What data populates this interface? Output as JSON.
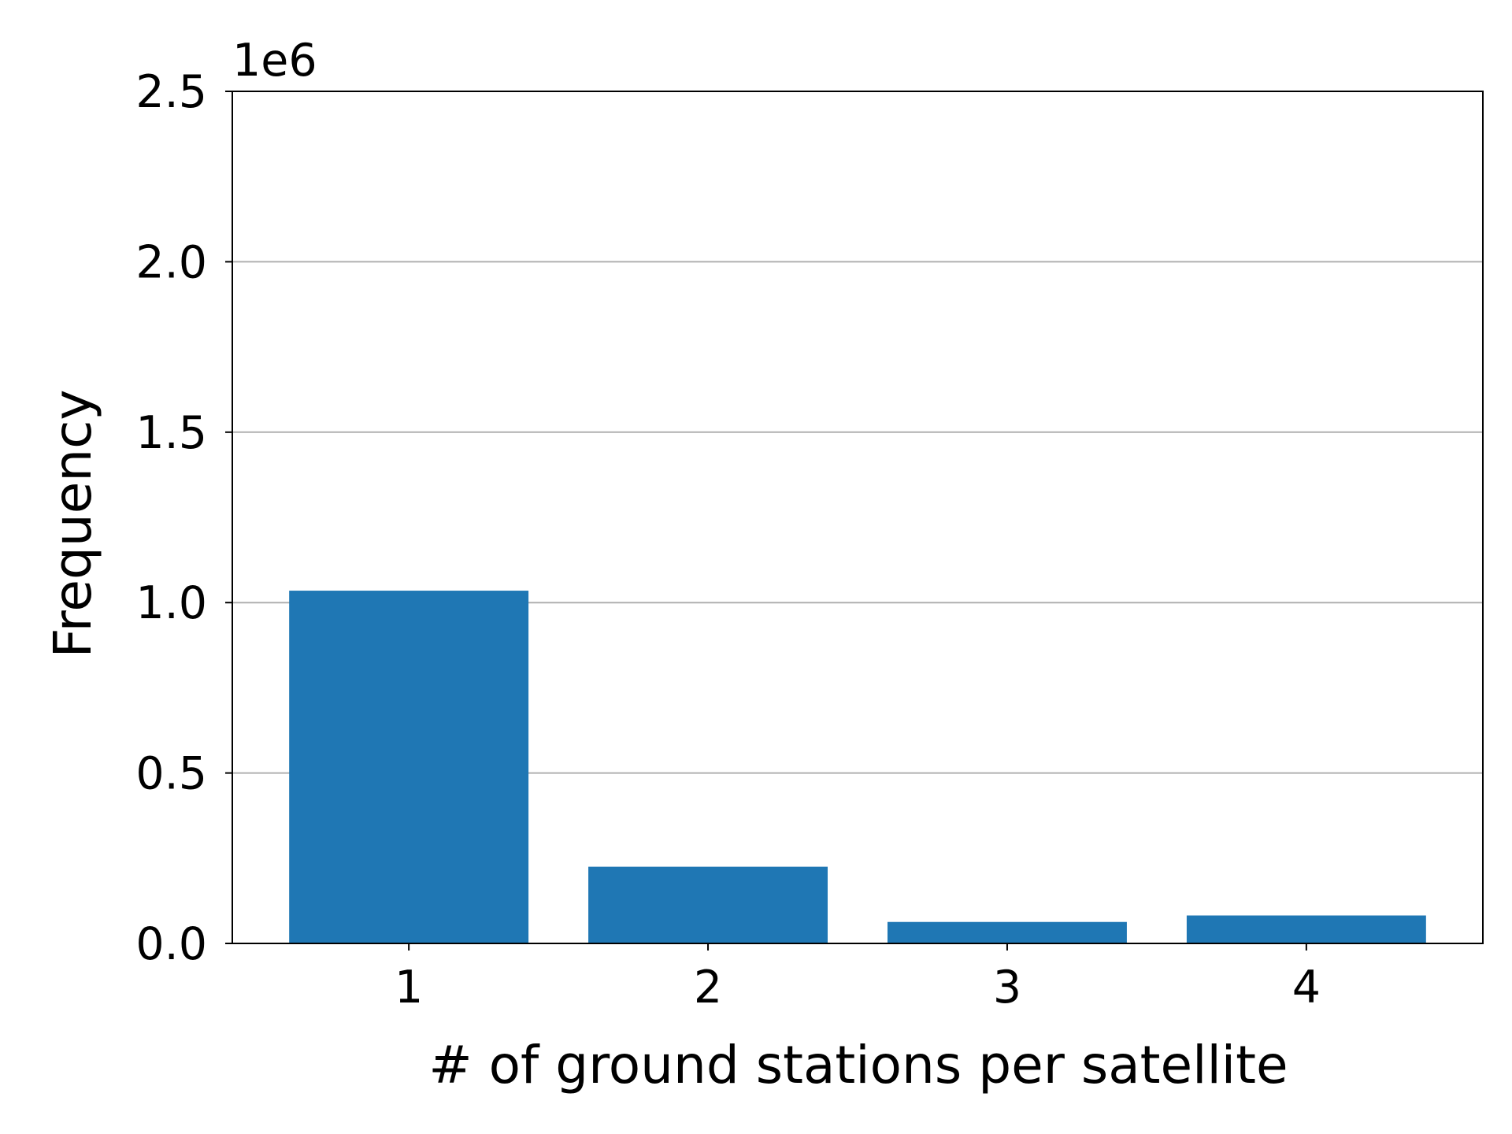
{
  "chart_data": {
    "type": "bar",
    "x_label": "# of ground stations per satellite",
    "y_label": "Frequency",
    "y_offset_label": "1e6",
    "x": [
      1,
      2,
      3,
      4
    ],
    "values": [
      1035000,
      225000,
      63000,
      82000
    ],
    "color": "#1f77b4",
    "xlim": [
      0.41,
      4.59
    ],
    "xticks": [
      1,
      2,
      3,
      4
    ],
    "ylim": [
      0,
      2500000
    ],
    "yticks": [
      {
        "value": 0,
        "label": "0.0"
      },
      {
        "value": 500000,
        "label": "0.5"
      },
      {
        "value": 1000000,
        "label": "1.0"
      },
      {
        "value": 1500000,
        "label": "1.5"
      },
      {
        "value": 2000000,
        "label": "2.0"
      },
      {
        "value": 2500000,
        "label": "2.5"
      }
    ],
    "grid": "y"
  }
}
